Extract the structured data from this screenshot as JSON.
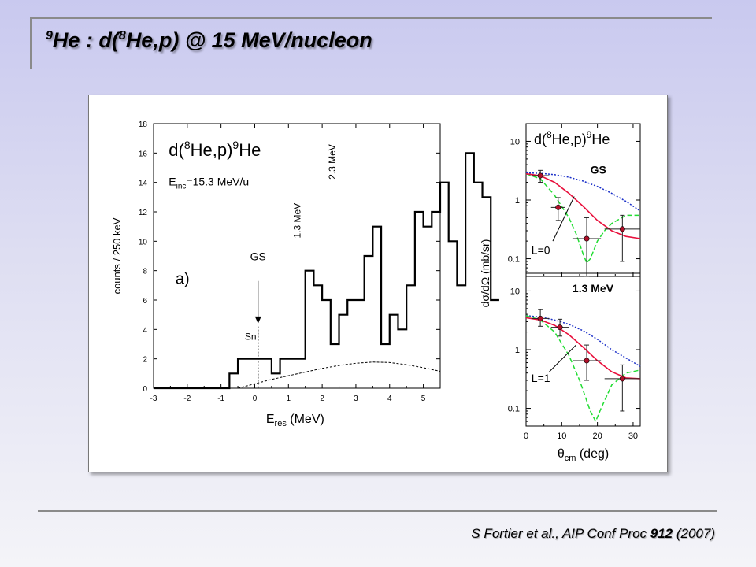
{
  "slide": {
    "title_sup1": "9",
    "title_a": "He :  d(",
    "title_sup2": "8",
    "title_b": "He,p) @ 15 MeV/nucleon",
    "citation_a": "S Fortier et al., AIP Conf Proc ",
    "citation_bold": "912",
    "citation_b": " (2007)"
  },
  "chart_data": [
    {
      "type": "line",
      "panel_label": "a)",
      "reaction": "d(8He,p)9He",
      "reaction_parts": [
        "d(",
        "8",
        "He,p)",
        "9",
        "He"
      ],
      "energy_label": [
        "E",
        "inc",
        "=15.3 MeV/u"
      ],
      "xlabel": [
        "E",
        "res",
        " (MeV)"
      ],
      "ylabel": "counts / 250 keV",
      "xlim": [
        -3,
        5.5
      ],
      "ylim": [
        0,
        18
      ],
      "xticks": [
        -3,
        -2,
        -1,
        0,
        1,
        2,
        3,
        4,
        5
      ],
      "yticks": [
        0,
        2,
        4,
        6,
        8,
        10,
        12,
        14,
        16,
        18
      ],
      "histogram": {
        "bin_width": 0.25,
        "bin_start": -0.75,
        "counts": [
          1,
          2,
          2,
          2,
          2,
          1,
          2,
          2,
          2,
          8,
          7,
          6,
          3,
          5,
          6,
          6,
          9,
          11,
          3,
          5,
          4,
          7,
          12,
          11,
          12,
          14,
          10,
          7,
          16,
          14,
          13,
          6
        ]
      },
      "background_curve": {
        "x": [
          -0.5,
          0,
          0.5,
          1,
          1.5,
          2,
          2.5,
          3,
          3.5,
          4,
          4.5,
          5,
          5.5
        ],
        "y": [
          0,
          0.3,
          0.6,
          0.85,
          1.1,
          1.35,
          1.55,
          1.7,
          1.78,
          1.75,
          1.6,
          1.4,
          1.15
        ]
      },
      "annotations": [
        {
          "text": "GS",
          "x": 0.05,
          "y": 8.7
        },
        {
          "text": "Sn",
          "x": 0,
          "y": 3.5
        },
        {
          "text": "1.3 MeV",
          "x": 1.3,
          "y": 10
        },
        {
          "text": "2.3 MeV",
          "x": 2.3,
          "y": 13.5
        }
      ]
    },
    {
      "type": "scatter",
      "reaction_parts": [
        "d(",
        "8",
        "He,p)",
        "9",
        "He"
      ],
      "xlabel": [
        "θ",
        "cm",
        " (deg)"
      ],
      "ylabel": "dσ/dΩ (mb/sr)",
      "xlim": [
        0,
        32
      ],
      "xticks": [
        0,
        10,
        20,
        30
      ],
      "y_scale": "log",
      "panels": [
        {
          "label": "GS",
          "curve_label": "L=0",
          "ylim": [
            0.05,
            20
          ],
          "yticks": [
            10,
            1,
            0.1
          ],
          "ytick_labels": [
            "10",
            "1",
            "0.1"
          ],
          "points": [
            {
              "x": 4,
              "y": 2.6,
              "xerr": 2.5,
              "ylo": 2.0,
              "yhi": 3.2
            },
            {
              "x": 9,
              "y": 0.75,
              "xerr": 2.0,
              "ylo": 0.45,
              "yhi": 1.1
            },
            {
              "x": 17,
              "y": 0.22,
              "xerr": 4.0,
              "ylo": 0.05,
              "yhi": 0.5
            },
            {
              "x": 27,
              "y": 0.32,
              "xerr": 5.0,
              "ylo": 0.09,
              "yhi": 0.55
            }
          ],
          "curve_solid": {
            "x": [
              0,
              4,
              8,
              12,
              16,
              20,
              24,
              28,
              32
            ],
            "y": [
              2.8,
              2.6,
              2.0,
              1.3,
              0.78,
              0.45,
              0.3,
              0.24,
              0.22
            ]
          },
          "curve_dotted": {
            "x": [
              0,
              4,
              8,
              12,
              16,
              20,
              24,
              28,
              32
            ],
            "y": [
              2.9,
              2.85,
              2.7,
              2.45,
              2.1,
              1.7,
              1.3,
              0.95,
              0.65
            ]
          },
          "curve_dashed": {
            "x": [
              0,
              4,
              8,
              12,
              14,
              16,
              17,
              18,
              20,
              22,
              24,
              28,
              32
            ],
            "y": [
              2.8,
              2.3,
              1.2,
              0.5,
              0.27,
              0.12,
              0.085,
              0.1,
              0.2,
              0.3,
              0.4,
              0.55,
              0.55
            ]
          }
        },
        {
          "label": "1.3 MeV",
          "curve_label": "L=1",
          "ylim": [
            0.05,
            20
          ],
          "yticks": [
            10,
            1,
            0.1
          ],
          "ytick_labels": [
            "10",
            "1",
            "0.1"
          ],
          "points": [
            {
              "x": 4,
              "y": 3.4,
              "xerr": 2.5,
              "ylo": 2.5,
              "yhi": 4.8
            },
            {
              "x": 9.5,
              "y": 2.4,
              "xerr": 2.5,
              "ylo": 1.7,
              "yhi": 3.3
            },
            {
              "x": 17,
              "y": 0.65,
              "xerr": 4.0,
              "ylo": 0.3,
              "yhi": 1.2
            },
            {
              "x": 27,
              "y": 0.32,
              "xerr": 5.0,
              "ylo": 0.09,
              "yhi": 0.55
            }
          ],
          "curve_solid": {
            "x": [
              0,
              4,
              8,
              12,
              16,
              20,
              24,
              28,
              32
            ],
            "y": [
              3.5,
              3.2,
              2.6,
              1.8,
              1.1,
              0.65,
              0.42,
              0.33,
              0.32
            ]
          },
          "curve_dotted": {
            "x": [
              0,
              4,
              8,
              12,
              16,
              20,
              24,
              28,
              32
            ],
            "y": [
              3.8,
              3.6,
              3.2,
              2.7,
              2.1,
              1.5,
              1.0,
              0.72,
              0.52
            ]
          },
          "curve_dashed": {
            "x": [
              0,
              4,
              8,
              12,
              15,
              18,
              19.5,
              21,
              24,
              28,
              32
            ],
            "y": [
              3.8,
              3.2,
              2.0,
              0.8,
              0.3,
              0.09,
              0.06,
              0.1,
              0.25,
              0.4,
              0.45
            ]
          }
        }
      ]
    }
  ]
}
